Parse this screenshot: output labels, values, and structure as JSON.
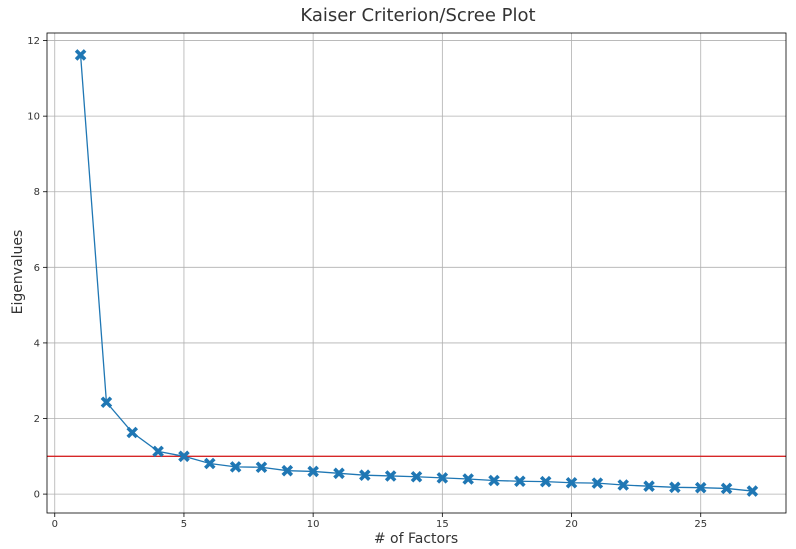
{
  "chart_data": {
    "type": "line",
    "title": "Kaiser Criterion/Scree Plot",
    "xlabel": "# of Factors",
    "ylabel": "Eigenvalues",
    "xlim": [
      -0.3,
      28.3
    ],
    "ylim": [
      -0.5,
      12.2
    ],
    "xticks": [
      0,
      5,
      10,
      15,
      20,
      25
    ],
    "yticks": [
      0,
      2,
      4,
      6,
      8,
      10,
      12
    ],
    "grid": true,
    "reference_line": {
      "y": 1,
      "color": "#d62728"
    },
    "series": [
      {
        "color": "#1f77b4",
        "marker": "X",
        "x": [
          1,
          2,
          3,
          4,
          5,
          6,
          7,
          8,
          9,
          10,
          11,
          12,
          13,
          14,
          15,
          16,
          17,
          18,
          19,
          20,
          21,
          22,
          23,
          24,
          25,
          26,
          27
        ],
        "y": [
          11.62,
          2.43,
          1.63,
          1.13,
          1.0,
          0.81,
          0.72,
          0.71,
          0.62,
          0.6,
          0.55,
          0.5,
          0.48,
          0.46,
          0.43,
          0.4,
          0.36,
          0.34,
          0.33,
          0.3,
          0.29,
          0.24,
          0.21,
          0.18,
          0.17,
          0.15,
          0.08
        ]
      }
    ]
  }
}
